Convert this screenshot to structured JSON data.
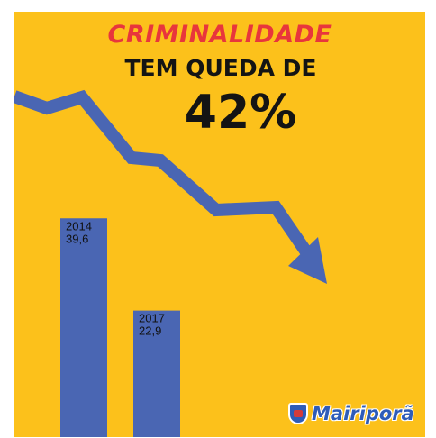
{
  "headline": {
    "line1": "CRIMINALIDADE",
    "line2": "TEM QUEDA DE",
    "line3": "42%"
  },
  "logo": {
    "name": "Mairiporã",
    "icon": "municipal-crest-icon"
  },
  "colors": {
    "background": "#fcc11b",
    "bar": "#4a66b3",
    "arrow": "#4a66b3",
    "headline_accent": "#e8363c",
    "headline_main": "#141414"
  },
  "chart_data": {
    "type": "bar",
    "categories": [
      "2014",
      "2017"
    ],
    "values": [
      39.6,
      22.9
    ],
    "value_labels": [
      "39,6",
      "22,9"
    ],
    "title": "CRIMINALIDADE TEM QUEDA DE 42%",
    "xlabel": "",
    "ylabel": "",
    "ylim": [
      0,
      42
    ],
    "grid": false,
    "trend_arrow": "down"
  }
}
